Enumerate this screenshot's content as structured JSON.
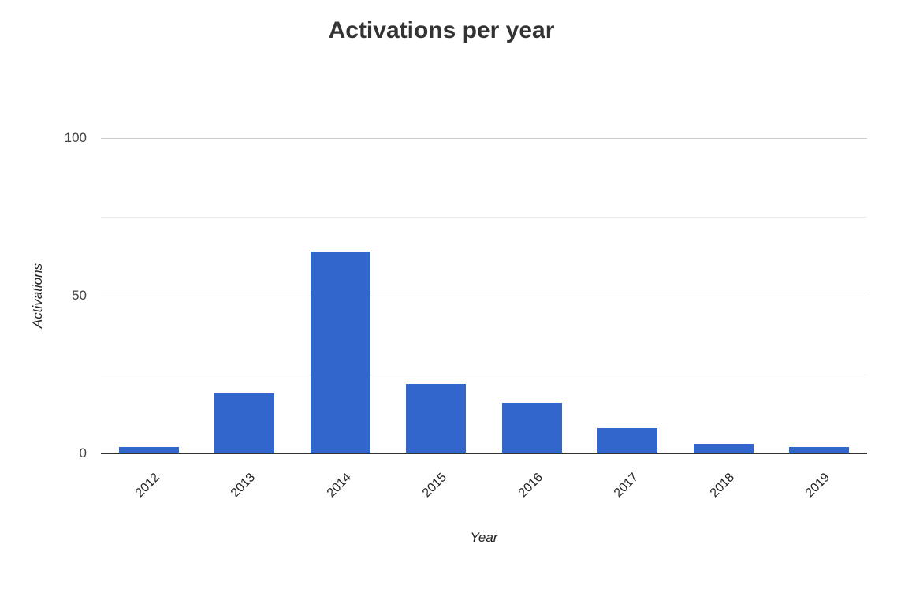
{
  "chart_data": {
    "type": "bar",
    "title": "Activations per year",
    "xlabel": "Year",
    "ylabel": "Activations",
    "categories": [
      "2012",
      "2013",
      "2014",
      "2015",
      "2016",
      "2017",
      "2018",
      "2019"
    ],
    "values": [
      2,
      19,
      64,
      22,
      16,
      8,
      3,
      2
    ],
    "ylim": [
      0,
      100
    ],
    "ytick_labels": [
      0,
      50,
      100
    ],
    "gridline_step": 25,
    "grid": true,
    "legend": "none",
    "colors": {
      "bar": "#3366cc",
      "title_text": "#333333",
      "tick_text": "#444444",
      "category_text": "#222222",
      "axis_title_text": "#222222",
      "major_gridline": "#cccccc",
      "minor_gridline": "#ebebeb",
      "baseline": "#333333",
      "background": "#ffffff"
    }
  }
}
